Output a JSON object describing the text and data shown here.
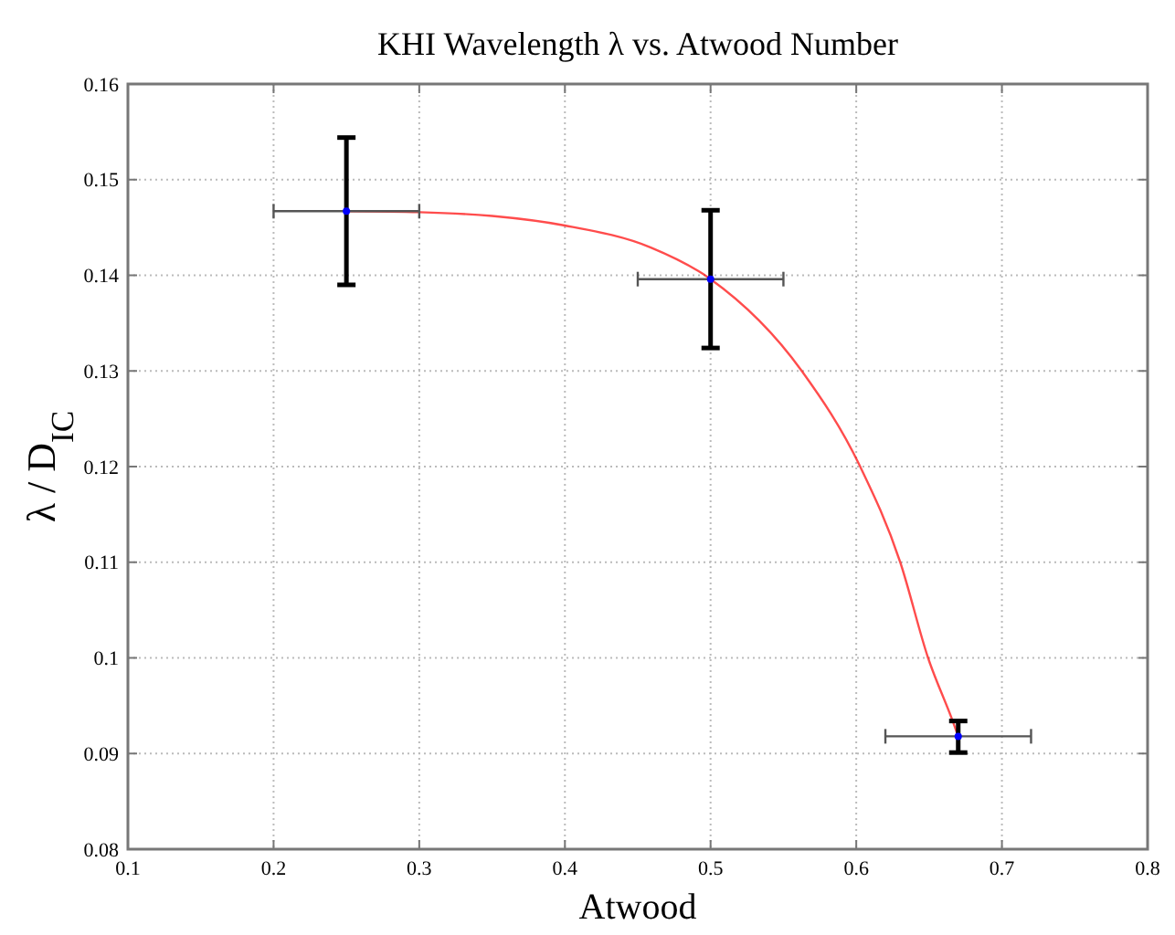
{
  "chart_data": {
    "type": "scatter",
    "title": "KHI Wavelength λ vs. Atwood Number",
    "xlabel": "Atwood",
    "ylabel": "λ / D$_{IC}$",
    "x": [
      0.25,
      0.5,
      0.67
    ],
    "series": [
      {
        "color": "#0000ff",
        "marker": "circle",
        "values": [
          0.1467,
          0.1396,
          0.0918
        ],
        "errors": [
          0.0077,
          0.0072,
          [
            0.0901,
            0.0934
          ]
        ],
        "xerrors": [
          0.05,
          0.05,
          0.05
        ]
      },
      {
        "type": "line",
        "color": "#ff0000",
        "line_style": "solid",
        "x": [
          0.25,
          0.3,
          0.35,
          0.4,
          0.459,
          0.5,
          0.5626,
          0.6027,
          0.6302,
          0.6493,
          0.6662,
          0.67
        ],
        "values": [
          0.1467,
          0.1466,
          0.1462,
          0.1452,
          0.1429,
          0.1396,
          0.13,
          0.12,
          0.11,
          0.1,
          0.0934,
          0.0918
        ]
      }
    ],
    "xlim": [
      0.1,
      0.8
    ],
    "xticks": [
      0.1,
      0.2,
      0.3,
      0.4,
      0.5,
      0.6,
      0.7,
      0.8
    ],
    "ylim": [
      0.08,
      0.16
    ],
    "yticks": [
      0.08,
      0.09,
      0.1,
      0.11,
      0.12,
      0.13,
      0.14,
      0.15,
      0.16
    ],
    "grid": true
  }
}
